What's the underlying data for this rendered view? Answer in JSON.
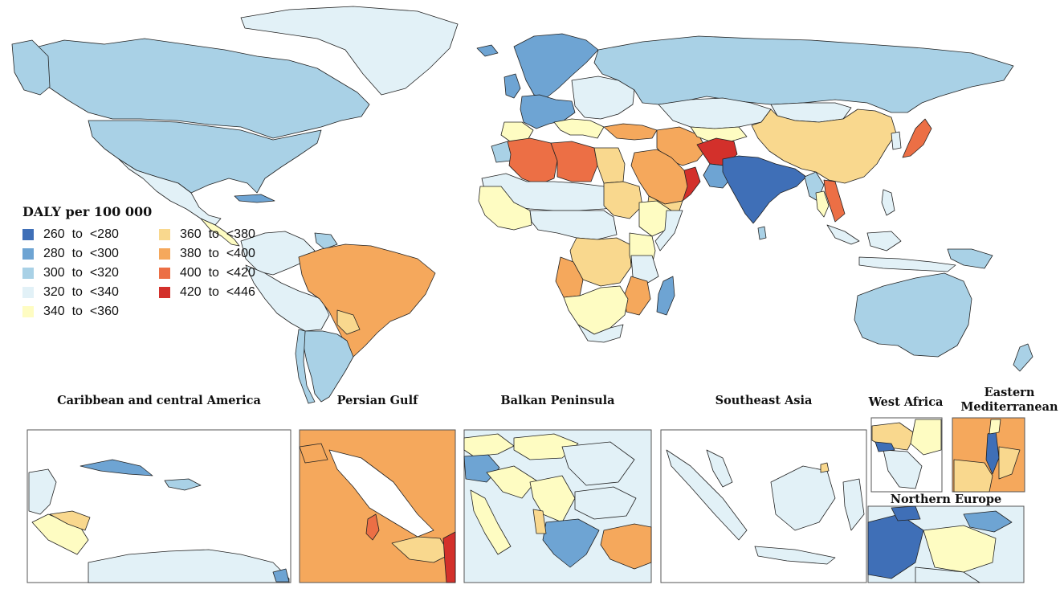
{
  "legend": {
    "title": "DALY per 100 000",
    "items": [
      {
        "label": "260  to  <280",
        "color": "#3f6fb7"
      },
      {
        "label": "280  to  <300",
        "color": "#6ea4d3"
      },
      {
        "label": "300  to  <320",
        "color": "#a9d1e6"
      },
      {
        "label": "320  to  <340",
        "color": "#e2f1f7"
      },
      {
        "label": "340  to  <360",
        "color": "#fefcc2"
      },
      {
        "label": "360  to  <380",
        "color": "#f9d88e"
      },
      {
        "label": "380  to  <400",
        "color": "#f5a85c"
      },
      {
        "label": "400  to  <420",
        "color": "#ec6f45"
      },
      {
        "label": "420  to  <446",
        "color": "#d3302b"
      }
    ]
  },
  "insets": {
    "caribbean": "Caribbean and central America",
    "persian_gulf": "Persian Gulf",
    "balkan": "Balkan Peninsula",
    "southeast_asia": "Southeast Asia",
    "west_africa": "West Africa",
    "eastern_mediterranean": "Eastern Mediterranean",
    "northern_europe": "Northern Europe"
  }
}
